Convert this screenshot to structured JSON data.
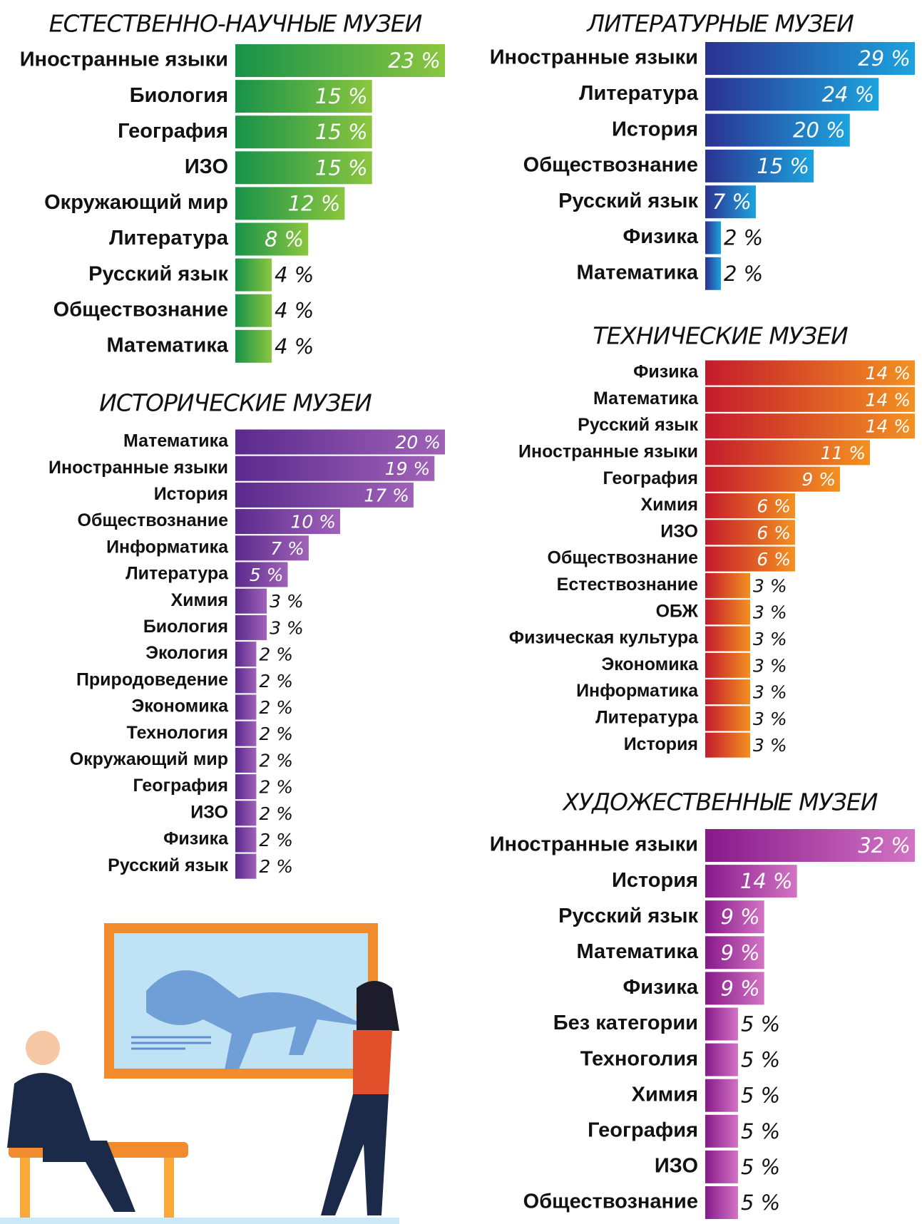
{
  "chart_data": [
    {
      "type": "bar",
      "title": "ЕСТЕСТВЕННО-НАУЧНЫЕ МУЗЕИ",
      "categories": [
        "Иностранные языки",
        "Биология",
        "География",
        "ИЗО",
        "Окружающий мир",
        "Литература",
        "Русский язык",
        "Обществознание",
        "Математика"
      ],
      "values": [
        23,
        15,
        15,
        15,
        12,
        8,
        4,
        4,
        4
      ],
      "value_labels": [
        "23 %",
        "15 %",
        "15 %",
        "15 %",
        "12 %",
        "8 %",
        "4 %",
        "4 %",
        "4 %"
      ],
      "gradient": [
        "#17924a",
        "#8cc63f"
      ]
    },
    {
      "type": "bar",
      "title": "ИСТОРИЧЕСКИЕ МУЗЕИ",
      "categories": [
        "Математика",
        "Иностранные языки",
        "История",
        "Обществознание",
        "Информатика",
        "Литература",
        "Химия",
        "Биология",
        "Экология",
        "Природоведение",
        "Экономика",
        "Технология",
        "Окружающий мир",
        "География",
        "ИЗО",
        "Физика",
        "Русский язык"
      ],
      "values": [
        20,
        19,
        17,
        10,
        7,
        5,
        3,
        3,
        2,
        2,
        2,
        2,
        2,
        2,
        2,
        2,
        2
      ],
      "value_labels": [
        "20 %",
        "19 %",
        "17 %",
        "10 %",
        "7 %",
        "5 %",
        "3 %",
        "3 %",
        "2 %",
        "2 %",
        "2 %",
        "2 %",
        "2 %",
        "2 %",
        "2 %",
        "2 %",
        "2 %"
      ],
      "gradient": [
        "#5a2a8c",
        "#9f62b8"
      ]
    },
    {
      "type": "bar",
      "title": "ЛИТЕРАТУРНЫЕ МУЗЕИ",
      "categories": [
        "Иностранные языки",
        "Литература",
        "История",
        "Обществознание",
        "Русский язык",
        "Физика",
        "Математика"
      ],
      "values": [
        29,
        24,
        20,
        15,
        7,
        2,
        2
      ],
      "value_labels": [
        "29 %",
        "24 %",
        "20 %",
        "15 %",
        "7 %",
        "2 %",
        "2 %"
      ],
      "gradient": [
        "#2b3290",
        "#1ca3de"
      ]
    },
    {
      "type": "bar",
      "title": "ТЕХНИЧЕСКИЕ МУЗЕИ",
      "categories": [
        "Физика",
        "Математика",
        "Русский язык",
        "Иностранные языки",
        "География",
        "Химия",
        "ИЗО",
        "Обществознание",
        "Естествознание",
        "ОБЖ",
        "Физическая культура",
        "Экономика",
        "Информатика",
        "Литература",
        "История"
      ],
      "values": [
        14,
        14,
        14,
        11,
        9,
        6,
        6,
        6,
        3,
        3,
        3,
        3,
        3,
        3,
        3
      ],
      "value_labels": [
        "14 %",
        "14 %",
        "14 %",
        "11 %",
        "9 %",
        "6 %",
        "6 %",
        "6 %",
        "3 %",
        "3 %",
        "3 %",
        "3 %",
        "3 %",
        "3 %",
        "3 %"
      ],
      "gradient": [
        "#c41b2c",
        "#f39121"
      ]
    },
    {
      "type": "bar",
      "title": "ХУДОЖЕСТВЕННЫЕ МУЗЕИ",
      "categories": [
        "Иностранные языки",
        "История",
        "Русский язык",
        "Математика",
        "Физика",
        "Без категории",
        "Техноголия",
        "Химия",
        "География",
        "ИЗО",
        "Обществознание"
      ],
      "values": [
        32,
        14,
        9,
        9,
        9,
        5,
        5,
        5,
        5,
        5,
        5
      ],
      "value_labels": [
        "32 %",
        "14 %",
        "9 %",
        "9 %",
        "9 %",
        "5 %",
        "5 %",
        "5 %",
        "5 %",
        "5 %",
        "5 %"
      ],
      "gradient": [
        "#87198a",
        "#d274c4"
      ]
    }
  ]
}
